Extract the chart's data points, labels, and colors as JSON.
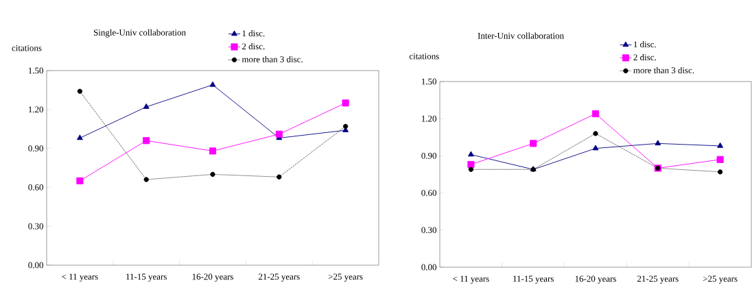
{
  "chart_data": [
    {
      "type": "line",
      "title": "Single-Univ collaboration",
      "ylabel": "citations",
      "categories": [
        "< 11 years",
        "11-15 years",
        "16-20 years",
        "21-25 years",
        ">25 years"
      ],
      "series": [
        {
          "name": "1 disc.",
          "color": "#000080",
          "marker": "triangle",
          "line_style": "solid",
          "values": [
            0.98,
            1.22,
            1.39,
            0.98,
            1.04
          ]
        },
        {
          "name": "2 disc.",
          "color": "#ff00ff",
          "marker": "square",
          "line_style": "solid",
          "values": [
            0.65,
            0.96,
            0.88,
            1.01,
            1.25
          ]
        },
        {
          "name": "more than 3 disc.",
          "color": "#000000",
          "marker": "circle",
          "line_style": "dotted",
          "values": [
            1.34,
            0.66,
            0.7,
            0.68,
            1.07
          ]
        }
      ],
      "ylim": [
        0,
        1.5
      ],
      "yticks": [
        {
          "value": 0,
          "label": "0.00"
        },
        {
          "value": 0.3,
          "label": "0.30"
        },
        {
          "value": 0.6,
          "label": "0.60"
        },
        {
          "value": 0.9,
          "label": "0.90"
        },
        {
          "value": 1.2,
          "label": "1.20"
        },
        {
          "value": 1.5,
          "label": "1.50"
        }
      ],
      "legend": "top right",
      "grid": false
    },
    {
      "type": "line",
      "title": "Inter-Univ collaboration",
      "ylabel": "citations",
      "categories": [
        "< 11 years",
        "11-15 years",
        "16-20 years",
        "21-25 years",
        ">25 years"
      ],
      "series": [
        {
          "name": "1 disc.",
          "color": "#000080",
          "marker": "triangle",
          "line_style": "solid",
          "values": [
            0.91,
            0.79,
            0.96,
            1.0,
            0.98
          ]
        },
        {
          "name": "2 disc.",
          "color": "#ff00ff",
          "marker": "square",
          "line_style": "solid",
          "values": [
            0.83,
            1.0,
            1.24,
            0.8,
            0.87
          ]
        },
        {
          "name": "more than 3 disc.",
          "color": "#000000",
          "marker": "circle",
          "line_style": "dotted",
          "values": [
            0.79,
            0.79,
            1.08,
            0.8,
            0.77
          ]
        }
      ],
      "ylim": [
        0,
        1.5
      ],
      "yticks": [
        {
          "value": 0,
          "label": "0.00"
        },
        {
          "value": 0.3,
          "label": "0.30"
        },
        {
          "value": 0.6,
          "label": "0.60"
        },
        {
          "value": 0.9,
          "label": "0.90"
        },
        {
          "value": 1.2,
          "label": "1.20"
        },
        {
          "value": 1.5,
          "label": "1.50"
        }
      ],
      "legend": "top right",
      "grid": false
    }
  ]
}
